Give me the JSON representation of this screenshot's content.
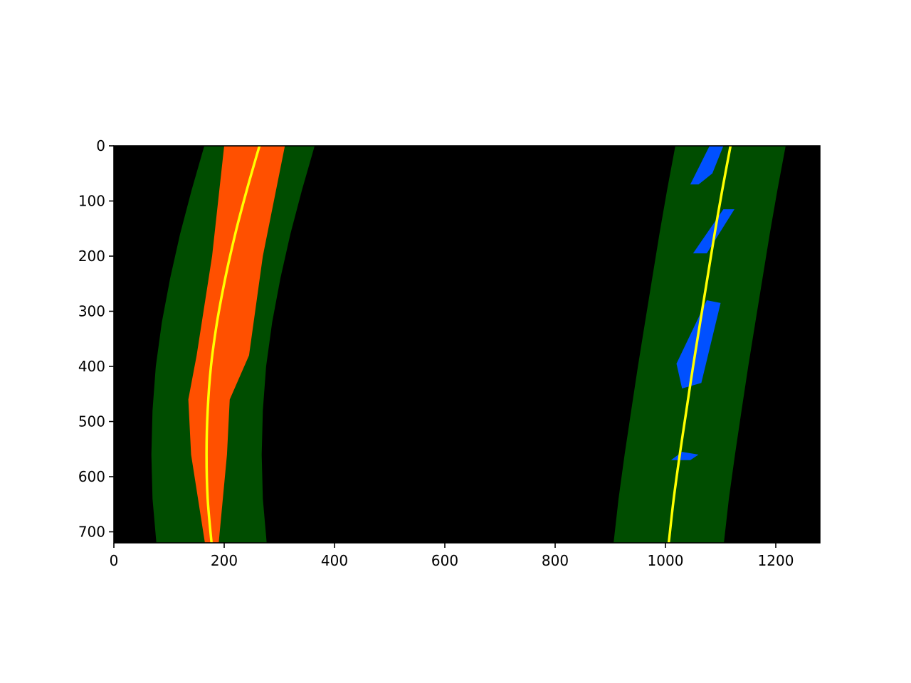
{
  "chart_data": {
    "type": "line",
    "title": "",
    "xlabel": "",
    "ylabel": "",
    "xlim": [
      0,
      1280
    ],
    "ylim": [
      720,
      0
    ],
    "x_ticks": [
      0,
      200,
      400,
      600,
      800,
      1000,
      1200
    ],
    "y_ticks": [
      0,
      100,
      200,
      300,
      400,
      500,
      600,
      700
    ],
    "grid": false,
    "colors": {
      "background": "#000000",
      "search_window": "#004d00",
      "left_lane_pixels": "#ff5000",
      "right_lane_pixels": "#0050ff",
      "fit_line": "#ffff00",
      "noise": "#ffffff"
    },
    "series": [
      {
        "x": [
          264,
          241,
          220,
          202,
          187,
          176,
          170,
          168,
          170,
          177
        ],
        "y": [
          0,
          80,
          160,
          240,
          320,
          400,
          480,
          560,
          640,
          720
        ]
      },
      {
        "x": [
          1118,
          1103,
          1089,
          1076,
          1063,
          1050,
          1038,
          1026,
          1015,
          1006
        ],
        "y": [
          0,
          80,
          160,
          240,
          320,
          400,
          480,
          560,
          640,
          720
        ]
      }
    ],
    "search_band_half_width": 100,
    "left_lane_pixel_band": [
      {
        "y": 0,
        "left": 200,
        "right": 310
      },
      {
        "y": 200,
        "left": 178,
        "right": 270
      },
      {
        "y": 380,
        "left": 150,
        "right": 245
      },
      {
        "y": 460,
        "left": 135,
        "right": 210
      },
      {
        "y": 560,
        "left": 140,
        "right": 205
      },
      {
        "y": 720,
        "left": 165,
        "right": 190
      }
    ],
    "right_lane_pixel_blobs": [
      {
        "points": [
          [
            1080,
            0
          ],
          [
            1105,
            0
          ],
          [
            1085,
            50
          ],
          [
            1060,
            70
          ],
          [
            1045,
            70
          ]
        ]
      },
      {
        "points": [
          [
            1105,
            115
          ],
          [
            1125,
            115
          ],
          [
            1075,
            195
          ],
          [
            1050,
            195
          ]
        ]
      },
      {
        "points": [
          [
            1075,
            280
          ],
          [
            1100,
            285
          ],
          [
            1065,
            430
          ],
          [
            1030,
            440
          ],
          [
            1020,
            395
          ]
        ]
      },
      {
        "points": [
          [
            1030,
            555
          ],
          [
            1060,
            560
          ],
          [
            1045,
            570
          ],
          [
            1010,
            570
          ]
        ]
      }
    ]
  }
}
